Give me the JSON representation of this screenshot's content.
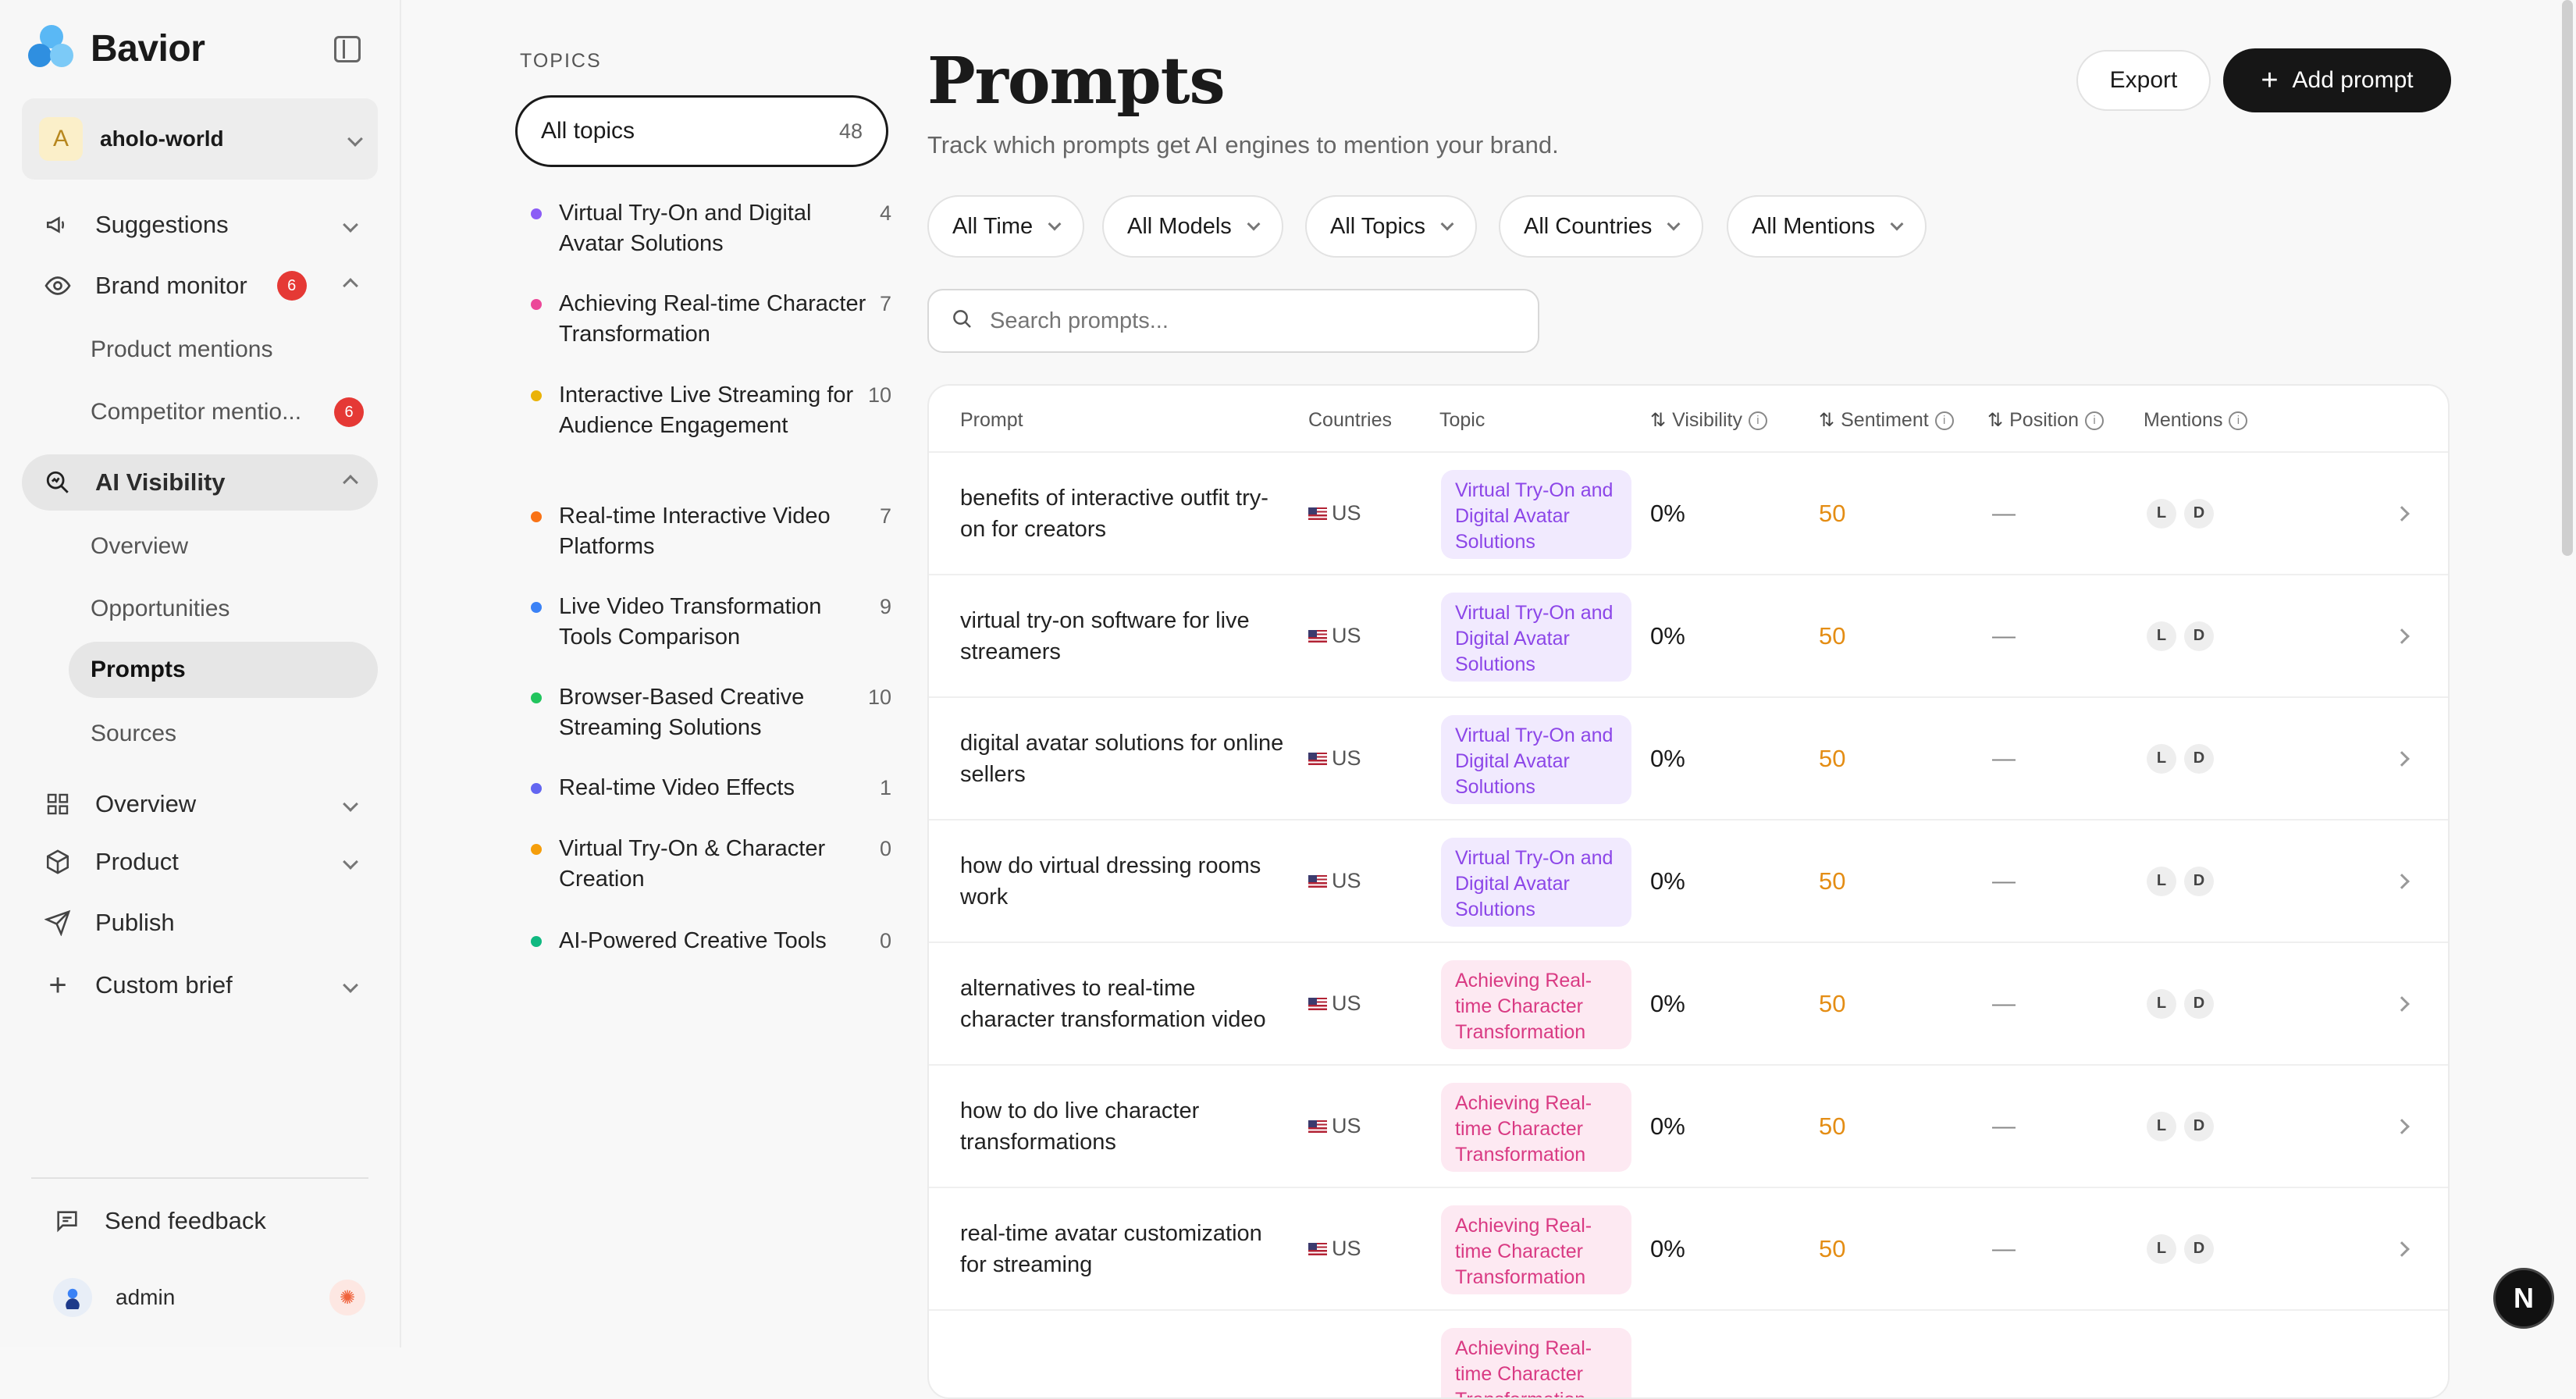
{
  "brand": {
    "name": "Bavior",
    "accent": "#3aa0f0"
  },
  "workspace": {
    "initial": "A",
    "name": "aholo-world"
  },
  "nav": {
    "suggestions": "Suggestions",
    "brand_monitor": "Brand monitor",
    "brand_monitor_badge": "6",
    "product_mentions": "Product mentions",
    "competitor_mentions": "Competitor mentio...",
    "competitor_badge": "6",
    "ai_visibility": "AI Visibility",
    "overview_sub": "Overview",
    "opportunities": "Opportunities",
    "prompts": "Prompts",
    "sources": "Sources",
    "overview": "Overview",
    "product": "Product",
    "publish": "Publish",
    "custom_brief": "Custom brief",
    "send_feedback": "Send feedback",
    "user": "admin"
  },
  "topics": {
    "heading": "TOPICS",
    "all_label": "All topics",
    "all_count": "48",
    "items": [
      {
        "label": "Virtual Try-On and Digital Avatar Solutions",
        "count": "4",
        "color": "#8b5cf6"
      },
      {
        "label": "Achieving Real-time Character Transformation",
        "count": "7",
        "color": "#ec4899"
      },
      {
        "label": "Interactive Live Streaming for Audience Engagement",
        "count": "10",
        "color": "#eab308"
      },
      {
        "label": "Real-time Interactive Video Platforms",
        "count": "7",
        "color": "#f97316"
      },
      {
        "label": "Live Video Transformation Tools Comparison",
        "count": "9",
        "color": "#3b82f6"
      },
      {
        "label": "Browser-Based Creative Streaming Solutions",
        "count": "10",
        "color": "#22c55e"
      },
      {
        "label": "Real-time Video Effects",
        "count": "1",
        "color": "#6366f1"
      },
      {
        "label": "Virtual Try-On & Character Creation",
        "count": "0",
        "color": "#f59e0b"
      },
      {
        "label": "AI-Powered Creative Tools",
        "count": "0",
        "color": "#10b981"
      }
    ]
  },
  "page": {
    "title": "Prompts",
    "subtitle": "Track which prompts get AI engines to mention your brand.",
    "export": "Export",
    "add_prompt": "Add prompt"
  },
  "filters": [
    "All Time",
    "All Models",
    "All Topics",
    "All Countries",
    "All Mentions"
  ],
  "search": {
    "placeholder": "Search prompts..."
  },
  "table": {
    "headers": {
      "prompt": "Prompt",
      "countries": "Countries",
      "topic": "Topic",
      "visibility": "Visibility",
      "sentiment": "Sentiment",
      "position": "Position",
      "mentions": "Mentions"
    },
    "rows": [
      {
        "prompt": "benefits of interactive outfit try-on for creators",
        "country": "US",
        "topic": "Virtual Try-On and Digital Avatar Solutions",
        "topic_color": "purple",
        "visibility": "0%",
        "sentiment": "50",
        "position": "—",
        "mentions": [
          "L",
          "D"
        ]
      },
      {
        "prompt": "virtual try-on software for live streamers",
        "country": "US",
        "topic": "Virtual Try-On and Digital Avatar Solutions",
        "topic_color": "purple",
        "visibility": "0%",
        "sentiment": "50",
        "position": "—",
        "mentions": [
          "L",
          "D"
        ]
      },
      {
        "prompt": "digital avatar solutions for online sellers",
        "country": "US",
        "topic": "Virtual Try-On and Digital Avatar Solutions",
        "topic_color": "purple",
        "visibility": "0%",
        "sentiment": "50",
        "position": "—",
        "mentions": [
          "L",
          "D"
        ]
      },
      {
        "prompt": "how do virtual dressing rooms work",
        "country": "US",
        "topic": "Virtual Try-On and Digital Avatar Solutions",
        "topic_color": "purple",
        "visibility": "0%",
        "sentiment": "50",
        "position": "—",
        "mentions": [
          "L",
          "D"
        ]
      },
      {
        "prompt": "alternatives to real-time character transformation video",
        "country": "US",
        "topic": "Achieving Real-time Character Transformation",
        "topic_color": "pink",
        "visibility": "0%",
        "sentiment": "50",
        "position": "—",
        "mentions": [
          "L",
          "D"
        ]
      },
      {
        "prompt": "how to do live character transformations",
        "country": "US",
        "topic": "Achieving Real-time Character Transformation",
        "topic_color": "pink",
        "visibility": "0%",
        "sentiment": "50",
        "position": "—",
        "mentions": [
          "L",
          "D"
        ]
      },
      {
        "prompt": "real-time avatar customization for streaming",
        "country": "US",
        "topic": "Achieving Real-time Character Transformation",
        "topic_color": "pink",
        "visibility": "0%",
        "sentiment": "50",
        "position": "—",
        "mentions": [
          "L",
          "D"
        ]
      },
      {
        "prompt": "",
        "country": "",
        "topic": "Achieving Real-time Character Transformation",
        "topic_color": "pink",
        "visibility": "",
        "sentiment": "",
        "position": "",
        "mentions": []
      }
    ]
  }
}
